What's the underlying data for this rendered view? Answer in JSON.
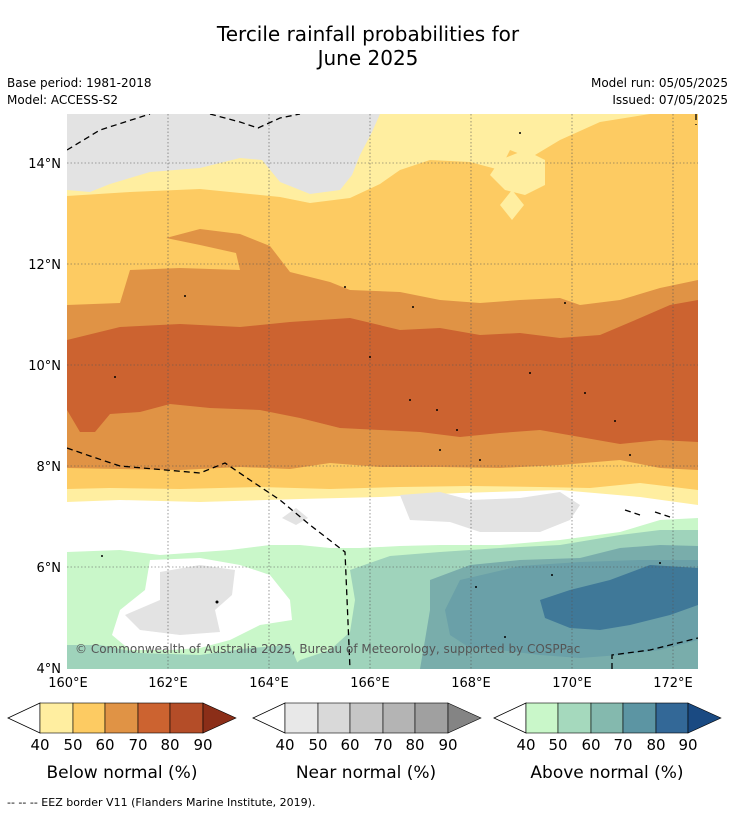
{
  "title_line1": "Tercile rainfall probabilities for",
  "title_line2": "June 2025",
  "base_period": "Base period: 1981-2018",
  "model": "Model: ACCESS-S2",
  "model_run": "Model run: 05/05/2025",
  "issued": "Issued: 07/05/2025",
  "lat_labels": [
    "14°N",
    "12°N",
    "10°N",
    "8°N",
    "6°N",
    "4°N"
  ],
  "lon_labels": [
    "160°E",
    "162°E",
    "164°E",
    "166°E",
    "168°E",
    "170°E",
    "172°E"
  ],
  "copyright": "© Commonwealth of Australia 2025, Bureau of Meteorology, supported by COSPPac",
  "colorbars": [
    {
      "title": "Below normal (%)",
      "ticks": [
        "40",
        "50",
        "60",
        "70",
        "80",
        "90"
      ],
      "colors": [
        "#ffeea0",
        "#fdcb62",
        "#e09345",
        "#cc6330",
        "#b44d28",
        "#8b2e18"
      ]
    },
    {
      "title": "Near normal (%)",
      "ticks": [
        "40",
        "50",
        "60",
        "70",
        "80",
        "90"
      ],
      "colors": [
        "#e8e8e8",
        "#d9d9d9",
        "#c6c6c6",
        "#b4b4b4",
        "#a0a0a0",
        "#848484"
      ]
    },
    {
      "title": "Above normal (%)",
      "ticks": [
        "40",
        "50",
        "60",
        "70",
        "80",
        "90"
      ],
      "colors": [
        "#c9f7c9",
        "#a5d9bd",
        "#84b9ae",
        "#5c95a3",
        "#336897",
        "#1a4a82"
      ]
    }
  ],
  "footnote": "--  --  -- EEZ border V11 (Flanders Marine Institute, 2019).",
  "map_colors": {
    "below_40": "#ffeea0",
    "below_50": "#fdcb62",
    "below_60": "#e09345",
    "below_70": "#cc6330",
    "near_40": "#e3e3e3",
    "above_40": "#c9f7c9",
    "above_50": "#9fd3bb",
    "above_60": "#79adab",
    "above_70": "#6aa0a8",
    "above_80": "#3f7898"
  }
}
